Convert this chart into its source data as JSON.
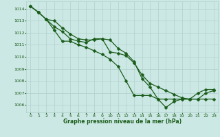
{
  "series": [
    {
      "x": [
        0,
        1,
        2,
        3,
        4,
        5,
        6,
        7,
        8,
        9,
        10,
        11,
        12,
        13,
        14,
        15,
        16,
        17,
        18,
        19,
        20,
        21,
        22,
        23
      ],
      "y": [
        1014.2,
        1013.7,
        1013.1,
        1012.2,
        1011.3,
        1011.3,
        1011.0,
        1010.8,
        1010.5,
        1010.2,
        1009.8,
        1009.2,
        1008.0,
        1006.8,
        1006.8,
        1006.8,
        1006.5,
        1006.5,
        1006.5,
        1006.5,
        1006.5,
        1007.0,
        1007.3,
        1007.3
      ]
    },
    {
      "x": [
        0,
        1,
        2,
        3,
        4,
        5,
        6,
        7,
        8,
        9,
        10,
        11,
        12,
        13,
        14,
        15,
        16,
        17,
        18,
        19,
        20,
        21,
        22,
        23
      ],
      "y": [
        1014.2,
        1013.7,
        1013.1,
        1013.0,
        1012.4,
        1011.9,
        1011.5,
        1011.4,
        1011.4,
        1011.5,
        1010.4,
        1010.3,
        1010.1,
        1009.5,
        1008.5,
        1007.8,
        1007.5,
        1007.2,
        1006.9,
        1006.6,
        1006.5,
        1006.5,
        1006.5,
        1006.5
      ]
    },
    {
      "x": [
        0,
        1,
        2,
        3,
        4,
        5,
        6,
        7,
        8,
        9,
        10,
        11,
        12,
        13,
        14,
        15,
        16,
        17,
        18,
        19,
        20,
        21,
        22,
        23
      ],
      "y": [
        1014.2,
        1013.7,
        1013.1,
        1012.5,
        1012.1,
        1011.5,
        1011.3,
        1011.2,
        1011.5,
        1011.5,
        1011.4,
        1010.7,
        1010.3,
        1009.6,
        1008.2,
        1007.5,
        1006.5,
        1005.8,
        1006.3,
        1006.5,
        1006.5,
        1006.5,
        1007.0,
        1007.2
      ]
    }
  ],
  "line_color": "#1a5c1a",
  "marker": "D",
  "markersize": 2.5,
  "linewidth": 0.9,
  "xlim": [
    -0.5,
    23.5
  ],
  "ylim": [
    1005.4,
    1014.6
  ],
  "yticks": [
    1006,
    1007,
    1008,
    1009,
    1010,
    1011,
    1012,
    1013,
    1014
  ],
  "xticks": [
    0,
    1,
    2,
    3,
    4,
    5,
    6,
    7,
    8,
    9,
    10,
    11,
    12,
    13,
    14,
    15,
    16,
    17,
    18,
    19,
    20,
    21,
    22,
    23
  ],
  "xlabel": "Graphe pression niveau de la mer (hPa)",
  "bg_color": "#cce8e4",
  "grid_color": "#b0d0cc",
  "axis_label_color": "#1a5c1a",
  "tick_label_color": "#1a5c1a"
}
